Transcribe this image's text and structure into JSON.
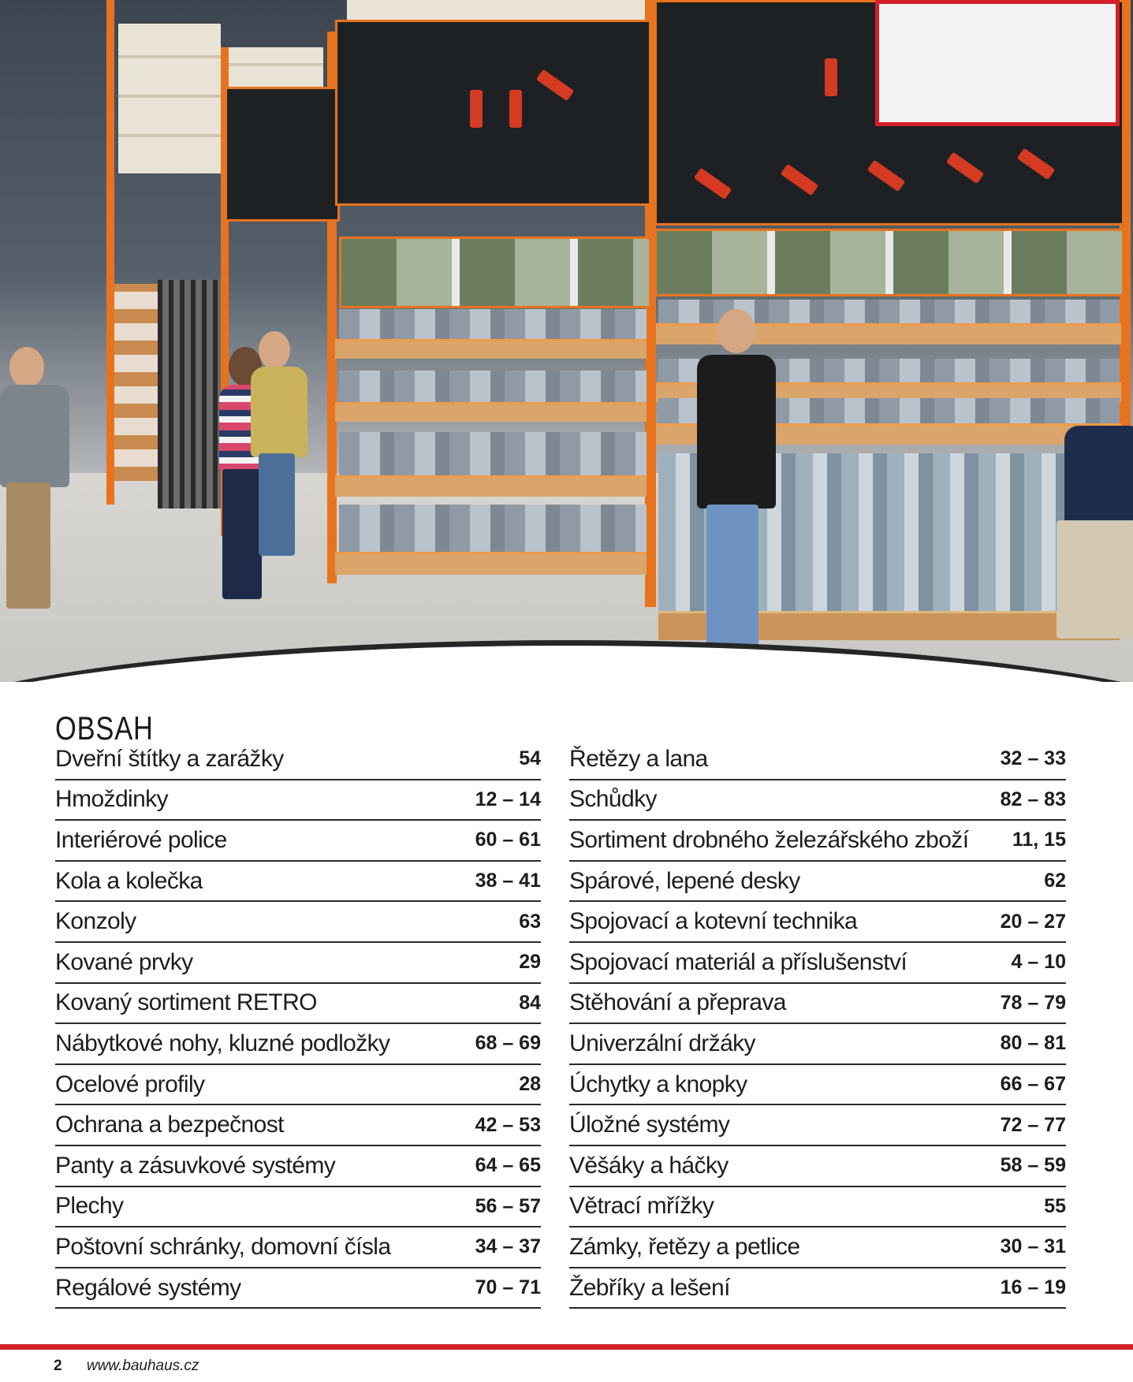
{
  "toc": {
    "title": "OBSAH",
    "left": [
      {
        "label": "Dveřní štítky a zarážky",
        "pages": "54"
      },
      {
        "label": "Hmoždinky",
        "pages": "12 – 14"
      },
      {
        "label": "Interiérové police",
        "pages": "60 – 61"
      },
      {
        "label": "Kola a kolečka",
        "pages": "38 – 41"
      },
      {
        "label": "Konzoly",
        "pages": "63"
      },
      {
        "label": "Kované prvky",
        "pages": "29"
      },
      {
        "label": "Kovaný sortiment RETRO",
        "pages": "84"
      },
      {
        "label": "Nábytkové nohy, kluzné podložky",
        "pages": "68 – 69"
      },
      {
        "label": "Ocelové profily",
        "pages": "28"
      },
      {
        "label": "Ochrana a bezpečnost",
        "pages": "42 – 53"
      },
      {
        "label": "Panty a zásuvkové systémy",
        "pages": "64 – 65"
      },
      {
        "label": "Plechy",
        "pages": "56 – 57"
      },
      {
        "label": "Poštovní schránky, domovní čísla",
        "pages": "34 – 37"
      },
      {
        "label": "Regálové systémy",
        "pages": "70 – 71"
      }
    ],
    "right": [
      {
        "label": "Řetězy a lana",
        "pages": "32 – 33"
      },
      {
        "label": "Schůdky",
        "pages": "82 – 83"
      },
      {
        "label": "Sortiment drobného železářského zboží",
        "pages": "11, 15"
      },
      {
        "label": "Spárové, lepené desky",
        "pages": "62"
      },
      {
        "label": "Spojovací a kotevní technika",
        "pages": "20 – 27"
      },
      {
        "label": "Spojovací materiál a příslušenství",
        "pages": "4 – 10"
      },
      {
        "label": "Stěhování a přeprava",
        "pages": "78 – 79"
      },
      {
        "label": "Univerzální držáky",
        "pages": "80 – 81"
      },
      {
        "label": "Úchytky a knopky",
        "pages": "66 – 67"
      },
      {
        "label": "Úložné systémy",
        "pages": "72 – 77"
      },
      {
        "label": "Věšáky a háčky",
        "pages": "58 – 59"
      },
      {
        "label": "Větrací mřížky",
        "pages": "55"
      },
      {
        "label": "Zámky, řetězy a petlice",
        "pages": "30 – 31"
      },
      {
        "label": "Žebříky a lešení",
        "pages": "16 – 19"
      }
    ]
  },
  "footer": {
    "page_number": "2",
    "url": "www.bauhaus.cz"
  },
  "colors": {
    "accent_red": "#d4202a",
    "rack_orange": "#e8731e"
  }
}
